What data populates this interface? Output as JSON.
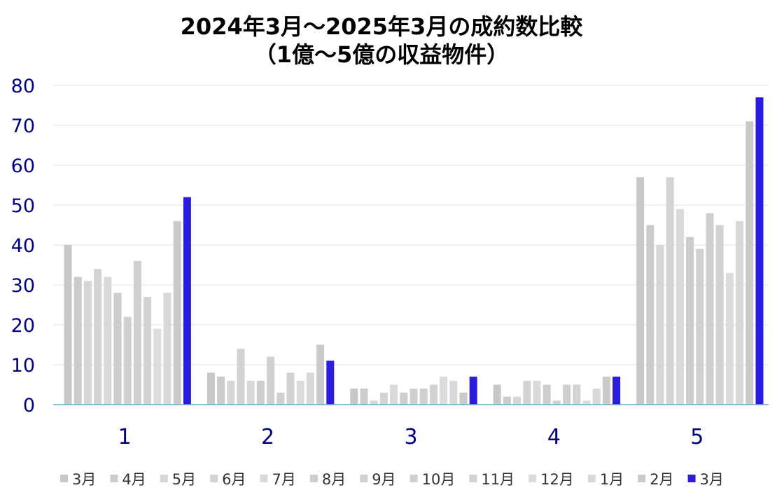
{
  "chart_data": {
    "type": "bar",
    "title_line1": "2024年3月～2025年3月の成約数比較",
    "title_line2": "（1億～5億の収益物件）",
    "categories": [
      "1",
      "2",
      "3",
      "4",
      "5"
    ],
    "ylim": [
      0,
      80
    ],
    "yticks": [
      "0",
      "10",
      "20",
      "30",
      "40",
      "50",
      "60",
      "70",
      "80"
    ],
    "grid": true,
    "legend_position": "bottom",
    "series": [
      {
        "name": "3月",
        "color": "#c8c8c8",
        "values": [
          40,
          8,
          4,
          5,
          57
        ]
      },
      {
        "name": "4月",
        "color": "#cbcbcb",
        "values": [
          32,
          7,
          4,
          2,
          45
        ]
      },
      {
        "name": "5月",
        "color": "#d6d6d6",
        "values": [
          31,
          6,
          1,
          2,
          40
        ]
      },
      {
        "name": "6月",
        "color": "#d3d3d3",
        "values": [
          34,
          14,
          3,
          6,
          57
        ]
      },
      {
        "name": "7月",
        "color": "#d9d9d9",
        "values": [
          32,
          6,
          5,
          6,
          49
        ]
      },
      {
        "name": "8月",
        "color": "#cdcdcd",
        "values": [
          28,
          6,
          3,
          5,
          42
        ]
      },
      {
        "name": "9月",
        "color": "#d0d0d0",
        "values": [
          22,
          12,
          4,
          1,
          39
        ]
      },
      {
        "name": "10月",
        "color": "#cfcfcf",
        "values": [
          36,
          3,
          4,
          5,
          48
        ]
      },
      {
        "name": "11月",
        "color": "#d2d2d2",
        "values": [
          27,
          8,
          5,
          5,
          45
        ]
      },
      {
        "name": "12月",
        "color": "#dcdcdc",
        "values": [
          19,
          6,
          7,
          1,
          33
        ]
      },
      {
        "name": "1月",
        "color": "#d8d8d8",
        "values": [
          28,
          8,
          6,
          4,
          46
        ]
      },
      {
        "name": "2月",
        "color": "#cacaca",
        "values": [
          46,
          15,
          3,
          7,
          71
        ]
      },
      {
        "name": "3月",
        "color": "#2b1de0",
        "values": [
          52,
          11,
          7,
          7,
          77
        ]
      }
    ]
  }
}
